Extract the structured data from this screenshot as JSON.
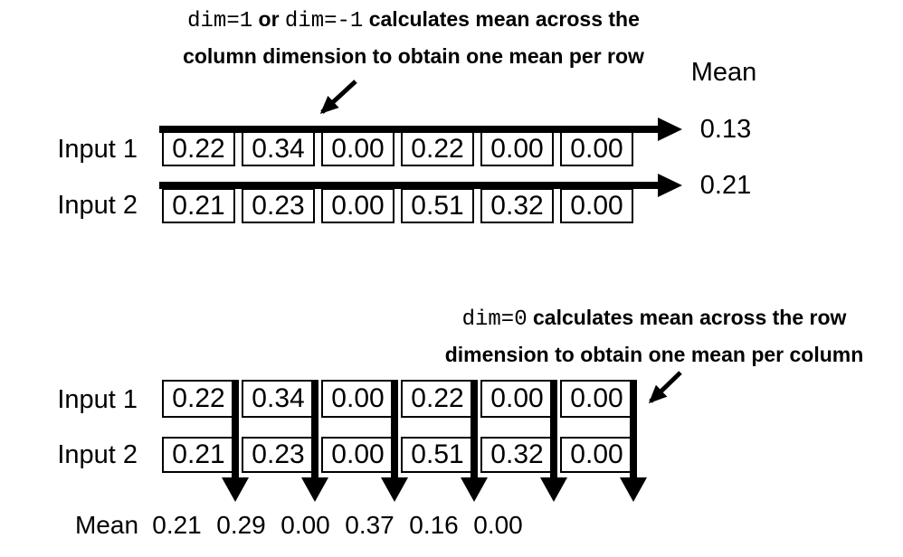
{
  "colors": {
    "ink": "#000000",
    "background": "#ffffff"
  },
  "top_section": {
    "caption_line1": [
      {
        "t": "dim=1",
        "mono": true
      },
      {
        "t": " or ",
        "mono": false
      },
      {
        "t": "dim=-1",
        "mono": true
      },
      {
        "t": " calculates mean across the",
        "mono": false
      }
    ],
    "caption_line2": [
      {
        "t": "column dimension to obtain one mean per row",
        "mono": false
      }
    ],
    "mean_header": "Mean",
    "rows": [
      {
        "label": "Input 1",
        "values": [
          "0.22",
          "0.34",
          "0.00",
          "0.22",
          "0.00",
          "0.00"
        ],
        "mean": "0.13"
      },
      {
        "label": "Input 2",
        "values": [
          "0.21",
          "0.23",
          "0.00",
          "0.51",
          "0.32",
          "0.00"
        ],
        "mean": "0.21"
      }
    ]
  },
  "bottom_section": {
    "caption_line1": [
      {
        "t": "dim=0",
        "mono": true
      },
      {
        "t": " calculates mean across the row",
        "mono": false
      }
    ],
    "caption_line2": [
      {
        "t": "dimension to obtain one mean per column",
        "mono": false
      }
    ],
    "rows": [
      {
        "label": "Input 1",
        "values": [
          "0.22",
          "0.34",
          "0.00",
          "0.22",
          "0.00",
          "0.00"
        ]
      },
      {
        "label": "Input 2",
        "values": [
          "0.21",
          "0.23",
          "0.00",
          "0.51",
          "0.32",
          "0.00"
        ]
      }
    ],
    "mean_label": "Mean",
    "column_means": [
      "0.21",
      "0.29",
      "0.00",
      "0.37",
      "0.16",
      "0.00"
    ]
  }
}
